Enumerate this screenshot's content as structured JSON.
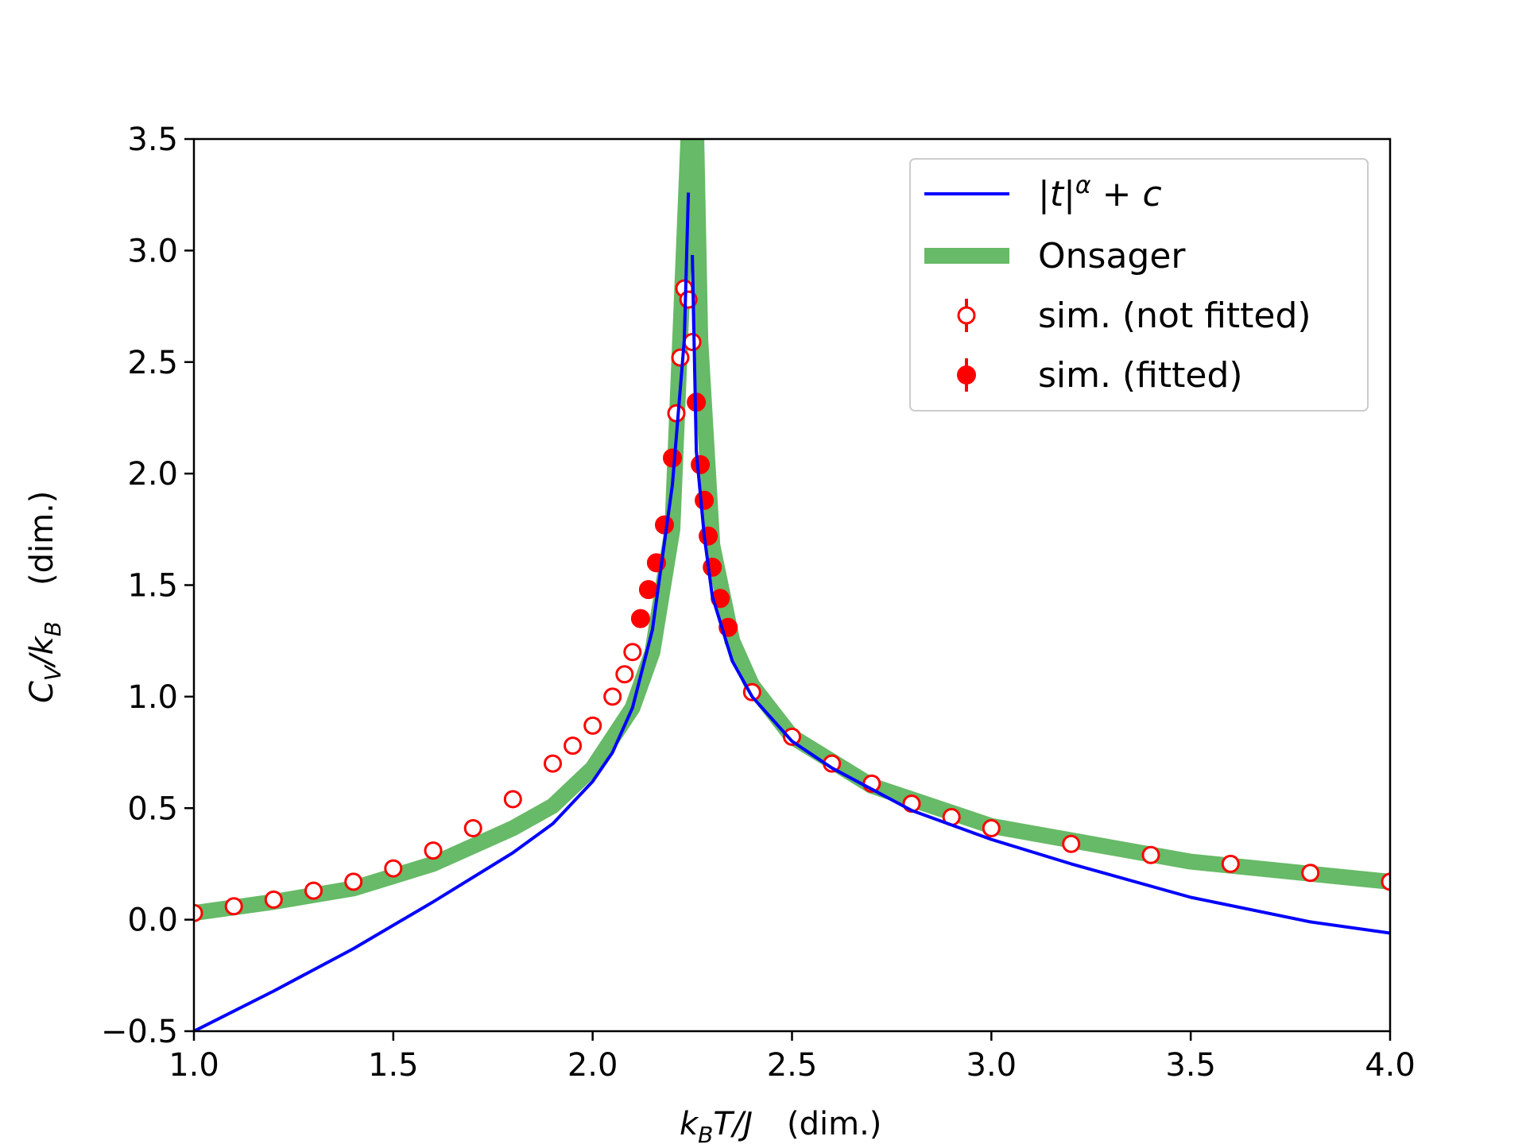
{
  "chart_data": {
    "type": "scatter",
    "title": "",
    "xlabel": "(dim.)",
    "ylabel": "(dim.)",
    "xlim": [
      1.0,
      4.0
    ],
    "ylim": [
      -0.5,
      3.5
    ],
    "xticks": [
      "1.0",
      "1.5",
      "2.0",
      "2.5",
      "3.0",
      "3.5",
      "4.0"
    ],
    "yticks": [
      "−0.5",
      "0.0",
      "0.5",
      "1.0",
      "1.5",
      "2.0",
      "2.5",
      "3.0",
      "3.5"
    ],
    "xtick_values": [
      1.0,
      1.5,
      2.0,
      2.5,
      3.0,
      3.5,
      4.0
    ],
    "ytick_values": [
      -0.5,
      0.0,
      0.5,
      1.0,
      1.5,
      2.0,
      2.5,
      3.0,
      3.5
    ],
    "grid": false,
    "legend_position": "top-right",
    "legend": [
      "|t|^α + c",
      "Onsager",
      "sim. (not fitted)",
      "sim. (fitted)"
    ],
    "colors": {
      "fit": "#0000ff",
      "onsager": "#2ca02c",
      "sim": "#ff0000"
    },
    "series": [
      {
        "name": "|t|^α + c",
        "kind": "line",
        "x": [
          1.0,
          1.2,
          1.4,
          1.6,
          1.8,
          1.9,
          2.0,
          2.05,
          2.1,
          2.15,
          2.2,
          2.23,
          2.24,
          2.25,
          2.26,
          2.28,
          2.3,
          2.35,
          2.4,
          2.5,
          2.6,
          2.8,
          3.0,
          3.2,
          3.5,
          3.8,
          4.0
        ],
        "y": [
          -0.5,
          -0.32,
          -0.13,
          0.08,
          0.3,
          0.43,
          0.62,
          0.75,
          0.95,
          1.3,
          1.95,
          2.6,
          3.26,
          2.98,
          2.1,
          1.72,
          1.45,
          1.16,
          1.0,
          0.8,
          0.68,
          0.49,
          0.36,
          0.25,
          0.1,
          -0.01,
          -0.06
        ]
      },
      {
        "name": "Onsager",
        "kind": "line",
        "x": [
          1.0,
          1.2,
          1.4,
          1.6,
          1.8,
          1.9,
          2.0,
          2.1,
          2.15,
          2.2,
          2.24,
          2.26,
          2.27,
          2.3,
          2.35,
          2.4,
          2.5,
          2.7,
          3.0,
          3.5,
          4.0
        ],
        "y": [
          0.03,
          0.08,
          0.14,
          0.25,
          0.41,
          0.51,
          0.68,
          0.95,
          1.2,
          1.75,
          3.5,
          3.5,
          2.6,
          1.68,
          1.25,
          1.05,
          0.82,
          0.6,
          0.42,
          0.26,
          0.17
        ]
      },
      {
        "name": "sim. (not fitted)",
        "kind": "scatter-open",
        "x": [
          1.0,
          1.1,
          1.2,
          1.3,
          1.4,
          1.5,
          1.6,
          1.7,
          1.8,
          1.9,
          1.95,
          2.0,
          2.05,
          2.08,
          2.1,
          2.21,
          2.22,
          2.23,
          2.24,
          2.25,
          2.4,
          2.5,
          2.6,
          2.7,
          2.8,
          2.9,
          3.0,
          3.2,
          3.4,
          3.6,
          3.8,
          4.0
        ],
        "y": [
          0.03,
          0.06,
          0.09,
          0.13,
          0.17,
          0.23,
          0.31,
          0.41,
          0.54,
          0.7,
          0.78,
          0.87,
          1.0,
          1.1,
          1.2,
          2.27,
          2.52,
          2.83,
          2.78,
          2.59,
          1.02,
          0.82,
          0.7,
          0.61,
          0.52,
          0.46,
          0.41,
          0.34,
          0.29,
          0.25,
          0.21,
          0.17
        ]
      },
      {
        "name": "sim. (fitted)",
        "kind": "scatter-filled",
        "x": [
          2.12,
          2.14,
          2.16,
          2.18,
          2.2,
          2.26,
          2.27,
          2.28,
          2.29,
          2.3,
          2.32,
          2.34
        ],
        "y": [
          1.35,
          1.48,
          1.6,
          1.77,
          2.07,
          2.32,
          2.04,
          1.88,
          1.72,
          1.58,
          1.44,
          1.31
        ]
      }
    ]
  }
}
